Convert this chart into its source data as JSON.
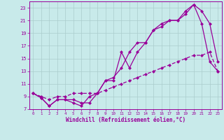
{
  "xlabel": "Windchill (Refroidissement éolien,°C)",
  "bg_color": "#c8eaea",
  "line_color": "#990099",
  "grid_color": "#aacccc",
  "xlim": [
    -0.5,
    23.5
  ],
  "ylim": [
    7,
    24
  ],
  "xticks": [
    0,
    1,
    2,
    3,
    4,
    5,
    6,
    7,
    8,
    9,
    10,
    11,
    12,
    13,
    14,
    15,
    16,
    17,
    18,
    19,
    20,
    21,
    22,
    23
  ],
  "yticks": [
    7,
    9,
    11,
    13,
    15,
    17,
    19,
    21,
    23
  ],
  "line1_x": [
    0,
    1,
    2,
    3,
    4,
    5,
    6,
    7,
    8,
    9,
    10,
    11,
    12,
    13,
    14,
    15,
    16,
    17,
    18,
    19,
    20,
    21,
    22,
    23
  ],
  "line1_y": [
    9.5,
    8.8,
    7.5,
    8.5,
    8.5,
    8.5,
    8.0,
    8.0,
    9.5,
    11.5,
    11.5,
    16.0,
    13.5,
    16.0,
    17.5,
    19.5,
    20.0,
    21.0,
    21.0,
    22.0,
    23.5,
    22.5,
    20.5,
    14.5
  ],
  "line2_x": [
    0,
    1,
    2,
    3,
    4,
    5,
    6,
    7,
    8,
    9,
    10,
    11,
    12,
    13,
    14,
    15,
    16,
    17,
    18,
    19,
    20,
    21,
    22,
    23
  ],
  "line2_y": [
    9.5,
    8.8,
    7.5,
    8.5,
    8.5,
    8.0,
    7.5,
    9.0,
    9.5,
    11.5,
    12.0,
    13.5,
    16.0,
    17.5,
    17.5,
    19.5,
    20.5,
    21.0,
    21.0,
    22.5,
    23.5,
    20.5,
    14.5,
    13.0
  ],
  "line3_x": [
    0,
    1,
    2,
    3,
    4,
    5,
    6,
    7,
    8,
    9,
    10,
    11,
    12,
    13,
    14,
    15,
    16,
    17,
    18,
    19,
    20,
    21,
    22,
    23
  ],
  "line3_y": [
    9.5,
    9.0,
    8.5,
    9.0,
    9.0,
    9.5,
    9.5,
    9.5,
    9.5,
    10.0,
    10.5,
    11.0,
    11.5,
    12.0,
    12.5,
    13.0,
    13.5,
    14.0,
    14.5,
    15.0,
    15.5,
    15.5,
    16.0,
    13.0
  ],
  "marker_size": 2.5,
  "line_width": 0.9,
  "tick_fontsize": 5.0,
  "xlabel_fontsize": 5.5
}
